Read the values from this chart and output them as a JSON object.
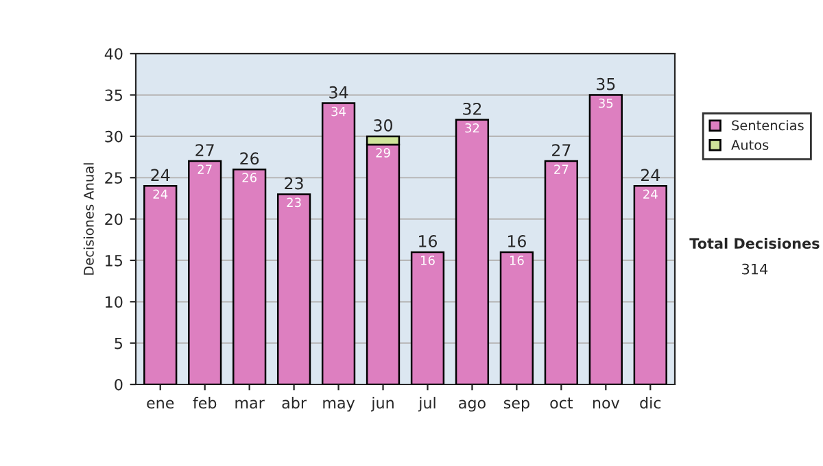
{
  "chart_data": {
    "type": "bar",
    "stacked": true,
    "ylabel": "Decisiones Anual",
    "categories": [
      "ene",
      "feb",
      "mar",
      "abr",
      "may",
      "jun",
      "jul",
      "ago",
      "sep",
      "oct",
      "nov",
      "dic"
    ],
    "series": [
      {
        "name": "Sentencias",
        "color": "#dd7fc0",
        "values": [
          24,
          27,
          26,
          23,
          34,
          29,
          16,
          32,
          16,
          27,
          35,
          24
        ],
        "value_labels": [
          "24",
          "27",
          "26",
          "23",
          "34",
          "29",
          "16",
          "32",
          "16",
          "27",
          "35",
          "24"
        ]
      },
      {
        "name": "Autos",
        "color": "#cfe49a",
        "values": [
          null,
          null,
          null,
          null,
          null,
          1,
          null,
          null,
          null,
          null,
          null,
          null
        ]
      }
    ],
    "totals": [
      "24",
      "27",
      "26",
      "23",
      "34",
      "30",
      "16",
      "32",
      "16",
      "27",
      "35",
      "24"
    ],
    "ylim": [
      0,
      40
    ],
    "yticks": [
      0,
      5,
      10,
      15,
      20,
      25,
      30,
      35,
      40
    ],
    "grid": "y",
    "legend": "right",
    "annotations": [
      "Total Decisiones",
      "314"
    ]
  }
}
